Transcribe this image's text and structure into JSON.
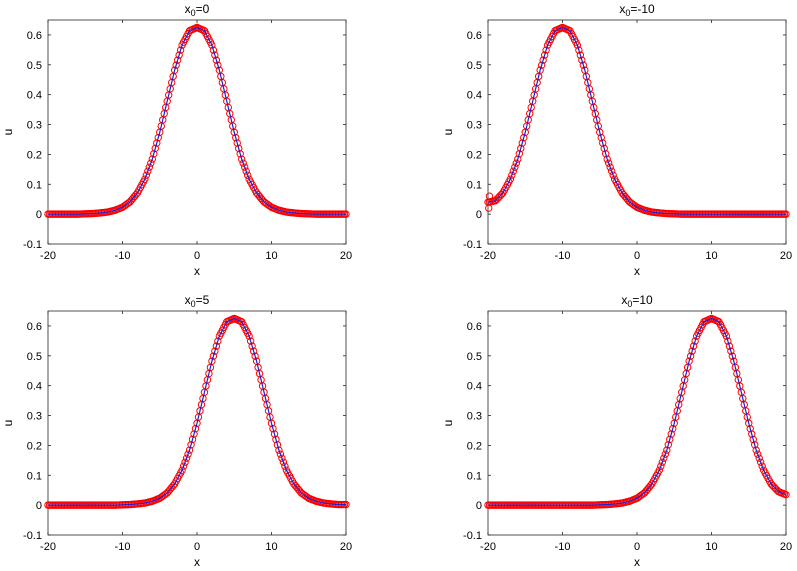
{
  "colors": {
    "markers": "#ff0000",
    "line": "#1f1fd0",
    "axes": "#262626",
    "background": "#ffffff"
  },
  "chart_data": [
    {
      "type": "line",
      "title_base": "x",
      "title_sub": "0",
      "title_tail": "=0",
      "xlabel": "x",
      "ylabel": "u",
      "xlim": [
        -20,
        20
      ],
      "ylim": [
        -0.1,
        0.65
      ],
      "xticks": [
        "-20",
        "-10",
        "0",
        "10",
        "20"
      ],
      "yticks": [
        "-0.1",
        "0",
        "0.1",
        "0.2",
        "0.3",
        "0.4",
        "0.5",
        "0.6"
      ],
      "grid": false,
      "peak_x": 0,
      "peak_u": 0.625,
      "series": [
        {
          "style": "solid-line"
        },
        {
          "style": "circle-markers"
        }
      ],
      "x": [
        -20,
        -19,
        -18,
        -17,
        -16,
        -15,
        -14,
        -13,
        -12,
        -11,
        -10,
        -9,
        -8,
        -7,
        -6,
        -5,
        -4,
        -3,
        -2,
        -1,
        0,
        1,
        2,
        3,
        4,
        5,
        6,
        7,
        8,
        9,
        10,
        11,
        12,
        13,
        14,
        15,
        16,
        17,
        18,
        19,
        20
      ],
      "u": [
        0,
        0,
        0,
        0,
        0,
        0.001,
        0.002,
        0.004,
        0.007,
        0.013,
        0.023,
        0.041,
        0.071,
        0.117,
        0.184,
        0.274,
        0.378,
        0.482,
        0.566,
        0.614,
        0.625,
        0.614,
        0.566,
        0.482,
        0.378,
        0.274,
        0.184,
        0.117,
        0.071,
        0.041,
        0.023,
        0.013,
        0.007,
        0.004,
        0.002,
        0.001,
        0,
        0,
        0,
        0,
        0
      ]
    },
    {
      "type": "line",
      "title_base": "x",
      "title_sub": "0",
      "title_tail": "=-10",
      "xlabel": "x",
      "ylabel": "u",
      "xlim": [
        -20,
        20
      ],
      "ylim": [
        -0.1,
        0.65
      ],
      "xticks": [
        "-20",
        "-10",
        "0",
        "10",
        "20"
      ],
      "yticks": [
        "-0.1",
        "0",
        "0.1",
        "0.2",
        "0.3",
        "0.4",
        "0.5",
        "0.6"
      ],
      "grid": false,
      "peak_x": -10,
      "peak_u": 0.625,
      "series": [
        {
          "style": "solid-line"
        },
        {
          "style": "circle-markers"
        }
      ],
      "x": [
        -20,
        -19,
        -18,
        -17,
        -16,
        -15,
        -14,
        -13,
        -12,
        -11,
        -10,
        -9,
        -8,
        -7,
        -6,
        -5,
        -4,
        -3,
        -2,
        -1,
        0,
        1,
        2,
        3,
        4,
        5,
        6,
        7,
        8,
        9,
        10,
        11,
        12,
        13,
        14,
        15,
        16,
        17,
        18,
        19,
        20
      ],
      "u": [
        0.04,
        0.045,
        0.071,
        0.117,
        0.184,
        0.274,
        0.378,
        0.482,
        0.566,
        0.614,
        0.625,
        0.614,
        0.566,
        0.482,
        0.378,
        0.274,
        0.184,
        0.117,
        0.071,
        0.041,
        0.023,
        0.013,
        0.007,
        0.004,
        0.002,
        0.001,
        0,
        0,
        0,
        0,
        0,
        0,
        0,
        0,
        0,
        0,
        0,
        0,
        0,
        0,
        0
      ],
      "outlier_points": [
        {
          "x": -19.8,
          "u": 0.06
        },
        {
          "x": -19.9,
          "u": 0.02
        }
      ]
    },
    {
      "type": "line",
      "title_base": "x",
      "title_sub": "0",
      "title_tail": "=5",
      "xlabel": "x",
      "ylabel": "u",
      "xlim": [
        -20,
        20
      ],
      "ylim": [
        -0.1,
        0.65
      ],
      "xticks": [
        "-20",
        "-10",
        "0",
        "10",
        "20"
      ],
      "yticks": [
        "-0.1",
        "0",
        "0.1",
        "0.2",
        "0.3",
        "0.4",
        "0.5",
        "0.6"
      ],
      "grid": false,
      "peak_x": 5,
      "peak_u": 0.625,
      "series": [
        {
          "style": "solid-line"
        },
        {
          "style": "circle-markers"
        }
      ],
      "x": [
        -20,
        -19,
        -18,
        -17,
        -16,
        -15,
        -14,
        -13,
        -12,
        -11,
        -10,
        -9,
        -8,
        -7,
        -6,
        -5,
        -4,
        -3,
        -2,
        -1,
        0,
        1,
        2,
        3,
        4,
        5,
        6,
        7,
        8,
        9,
        10,
        11,
        12,
        13,
        14,
        15,
        16,
        17,
        18,
        19,
        20
      ],
      "u": [
        0,
        0,
        0,
        0,
        0,
        0,
        0,
        0,
        0,
        0,
        0.001,
        0.002,
        0.004,
        0.007,
        0.013,
        0.023,
        0.041,
        0.071,
        0.117,
        0.184,
        0.274,
        0.378,
        0.482,
        0.566,
        0.614,
        0.625,
        0.614,
        0.566,
        0.482,
        0.378,
        0.274,
        0.184,
        0.117,
        0.071,
        0.041,
        0.023,
        0.013,
        0.007,
        0.004,
        0.002,
        0.002
      ]
    },
    {
      "type": "line",
      "title_base": "x",
      "title_sub": "0",
      "title_tail": "=10",
      "xlabel": "x",
      "ylabel": "u",
      "xlim": [
        -20,
        20
      ],
      "ylim": [
        -0.1,
        0.65
      ],
      "xticks": [
        "-20",
        "-10",
        "0",
        "10",
        "20"
      ],
      "yticks": [
        "-0.1",
        "0",
        "0.1",
        "0.2",
        "0.3",
        "0.4",
        "0.5",
        "0.6"
      ],
      "grid": false,
      "peak_x": 10,
      "peak_u": 0.625,
      "series": [
        {
          "style": "solid-line"
        },
        {
          "style": "circle-markers"
        }
      ],
      "x": [
        -20,
        -19,
        -18,
        -17,
        -16,
        -15,
        -14,
        -13,
        -12,
        -11,
        -10,
        -9,
        -8,
        -7,
        -6,
        -5,
        -4,
        -3,
        -2,
        -1,
        0,
        1,
        2,
        3,
        4,
        5,
        6,
        7,
        8,
        9,
        10,
        11,
        12,
        13,
        14,
        15,
        16,
        17,
        18,
        19,
        20
      ],
      "u": [
        0,
        0,
        0,
        0,
        0,
        0,
        0,
        0,
        0,
        0,
        0,
        0,
        0,
        0,
        0,
        0.001,
        0.002,
        0.004,
        0.007,
        0.013,
        0.023,
        0.041,
        0.071,
        0.117,
        0.184,
        0.274,
        0.378,
        0.482,
        0.566,
        0.614,
        0.625,
        0.614,
        0.566,
        0.482,
        0.378,
        0.274,
        0.184,
        0.117,
        0.071,
        0.045,
        0.035
      ]
    }
  ]
}
